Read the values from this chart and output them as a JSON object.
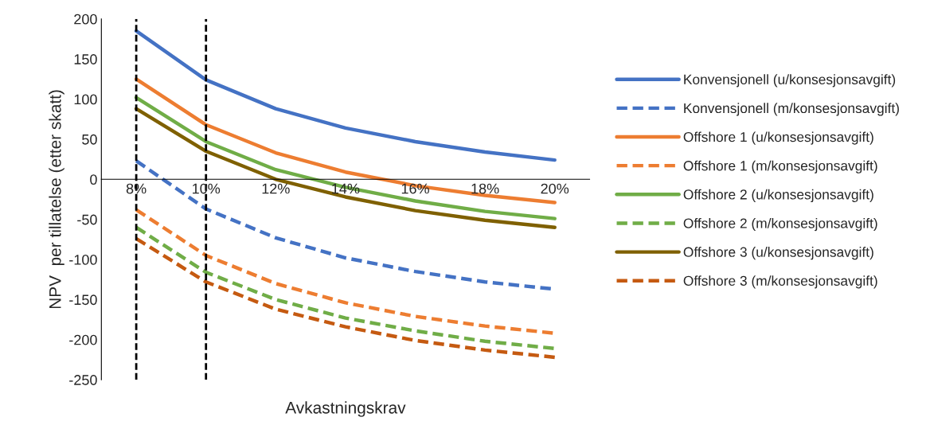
{
  "chart_data": {
    "type": "line",
    "xlabel": "Avkastningskrav",
    "ylabel": "NPV  per tillatelse (etter skatt)",
    "x": [
      8,
      10,
      12,
      14,
      16,
      18,
      20
    ],
    "xlim": [
      7,
      21
    ],
    "xticks": [
      {
        "value": 8,
        "label": "8%"
      },
      {
        "value": 10,
        "label": "10%"
      },
      {
        "value": 12,
        "label": "12%"
      },
      {
        "value": 14,
        "label": "14%"
      },
      {
        "value": 16,
        "label": "16%"
      },
      {
        "value": 18,
        "label": "18%"
      },
      {
        "value": 20,
        "label": "20%"
      }
    ],
    "ylim": [
      -250,
      200
    ],
    "yticks": [
      -250,
      -200,
      -150,
      -100,
      -50,
      0,
      50,
      100,
      150,
      200
    ],
    "grid": false,
    "legend": "right",
    "marker": "none",
    "series": [
      {
        "name": "Konvensjonell (u/konsesjonsavgift)",
        "color": "#4472c4",
        "line_style": "solid",
        "values": [
          185,
          124,
          88,
          64,
          47,
          34,
          24
        ]
      },
      {
        "name": "Konvensjonell (m/konsesjonsavgift)",
        "color": "#4472c4",
        "line_style": "dashed",
        "values": [
          23,
          -37,
          -73,
          -98,
          -115,
          -128,
          -137
        ]
      },
      {
        "name": "Offshore 1 (u/konsesjonsavgift)",
        "color": "#ed7d31",
        "line_style": "solid",
        "values": [
          125,
          68,
          33,
          9,
          -8,
          -20,
          -29
        ]
      },
      {
        "name": "Offshore 1 (m/konsesjonsavgift)",
        "color": "#ed7d31",
        "line_style": "dashed",
        "values": [
          -38,
          -95,
          -130,
          -154,
          -171,
          -183,
          -192
        ]
      },
      {
        "name": "Offshore 2 (u/konsesjonsavgift)",
        "color": "#70ad47",
        "line_style": "solid",
        "values": [
          102,
          47,
          12,
          -10,
          -27,
          -40,
          -49
        ]
      },
      {
        "name": "Offshore 2 (m/konsesjonsavgift)",
        "color": "#70ad47",
        "line_style": "dashed",
        "values": [
          -60,
          -116,
          -150,
          -173,
          -189,
          -202,
          -211
        ]
      },
      {
        "name": "Offshore 3 (u/konsesjonsavgift)",
        "color": "#7f6000",
        "line_style": "solid",
        "values": [
          88,
          35,
          0,
          -22,
          -39,
          -51,
          -60
        ]
      },
      {
        "name": "Offshore 3 (m/konsesjonsavgift)",
        "color": "#c55a11",
        "line_style": "dashed",
        "values": [
          -74,
          -128,
          -162,
          -184,
          -201,
          -213,
          -222
        ]
      }
    ],
    "ref_lines": [
      {
        "axis": "x",
        "value": 8,
        "color": "#000000",
        "line_style": "dashed"
      },
      {
        "axis": "x",
        "value": 10,
        "color": "#000000",
        "line_style": "dashed"
      }
    ]
  }
}
